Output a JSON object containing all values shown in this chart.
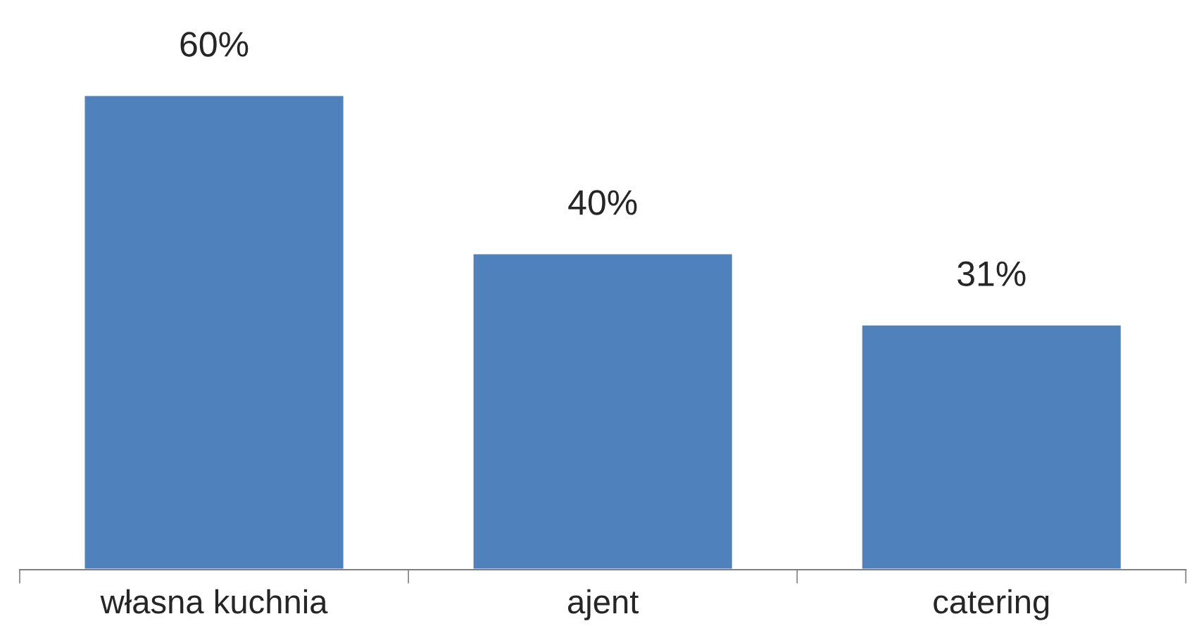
{
  "chart_data": {
    "type": "bar",
    "categories": [
      "własna kuchnia",
      "ajent",
      "catering"
    ],
    "values": [
      60,
      40,
      31
    ],
    "color": "#4f81bd",
    "value_labels": [
      "60%",
      "40%",
      "31%"
    ],
    "grid": false,
    "legend": false
  }
}
